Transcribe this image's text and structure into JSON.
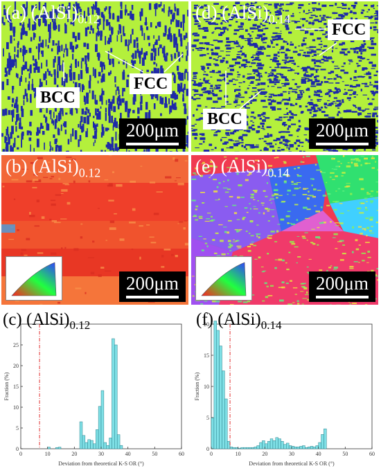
{
  "panels": {
    "a": {
      "label": "(a) (AlSi)",
      "sub": "0.12",
      "scale": "200μm",
      "bcc": "BCC",
      "fcc": "FCC"
    },
    "b": {
      "label": "(b) (AlSi)",
      "sub": "0.12",
      "scale": "200μm"
    },
    "d": {
      "label": "(d) (AlSi)",
      "sub": "0.14",
      "scale": "200μm",
      "bcc": "BCC",
      "fcc": "FCC"
    },
    "e": {
      "label": "(e) (AlSi)",
      "sub": "0.14",
      "scale": "200μm"
    }
  },
  "colors": {
    "fcc_green": "#b4f03c",
    "bcc_blue": "#1e2aa8",
    "ipf_red": "#f04a2a",
    "bar_fill": "#7fe0e6",
    "ks_line": "#e03030"
  },
  "chart_data": [
    {
      "type": "bar",
      "label": "(c) (AlSi)",
      "sub": "0.12",
      "xlabel": "Deviation from theoretical K-S OR (°)",
      "ylabel": "Fraction (%)",
      "xlim": [
        0,
        60
      ],
      "ylim": [
        0,
        30
      ],
      "xticks": [
        0,
        10,
        20,
        30,
        40,
        50,
        60
      ],
      "yticks": [
        0,
        5,
        10,
        15,
        20,
        25
      ],
      "ks_threshold": 7,
      "bin_width": 1,
      "x": [
        10,
        13,
        14,
        22,
        23,
        24,
        25,
        26,
        27,
        28,
        29,
        30,
        31,
        32,
        33,
        34,
        35,
        36,
        37
      ],
      "values": [
        0.4,
        0.3,
        0.4,
        6.5,
        3.2,
        1.5,
        2.2,
        2.0,
        1.2,
        4.6,
        10.2,
        14.0,
        1.5,
        0.8,
        2.6,
        26.5,
        25.0,
        3.4,
        0.8
      ]
    },
    {
      "type": "bar",
      "label": "(f) (AlSi)",
      "sub": "0.14",
      "xlabel": "Deviation from theoretical K-S OR (°)",
      "ylabel": "Fraction (%)",
      "xlim": [
        0,
        60
      ],
      "ylim": [
        0,
        20
      ],
      "xticks": [
        0,
        10,
        20,
        30,
        40,
        50,
        60
      ],
      "yticks": [
        0,
        5,
        10,
        15,
        20
      ],
      "ks_threshold": 7,
      "bin_width": 1,
      "x": [
        0,
        1,
        2,
        3,
        4,
        5,
        6,
        7,
        8,
        9,
        10,
        11,
        12,
        13,
        14,
        15,
        16,
        17,
        18,
        19,
        20,
        21,
        22,
        23,
        24,
        25,
        26,
        27,
        28,
        29,
        30,
        31,
        32,
        33,
        34,
        35,
        36,
        37,
        38,
        39,
        40,
        41,
        42
      ],
      "values": [
        5.0,
        20.5,
        19.0,
        16.5,
        12.5,
        8.0,
        1.2,
        0.3,
        0.2,
        0.2,
        0.1,
        0.2,
        0.2,
        0.2,
        0.2,
        0.2,
        0.3,
        0.5,
        1.0,
        1.3,
        0.8,
        1.2,
        1.6,
        1.3,
        1.8,
        1.6,
        1.2,
        0.7,
        0.9,
        0.5,
        0.4,
        0.3,
        0.3,
        0.4,
        0.5,
        0.2,
        0.3,
        0.4,
        0.3,
        0.5,
        1.0,
        2.3,
        3.2
      ]
    }
  ]
}
